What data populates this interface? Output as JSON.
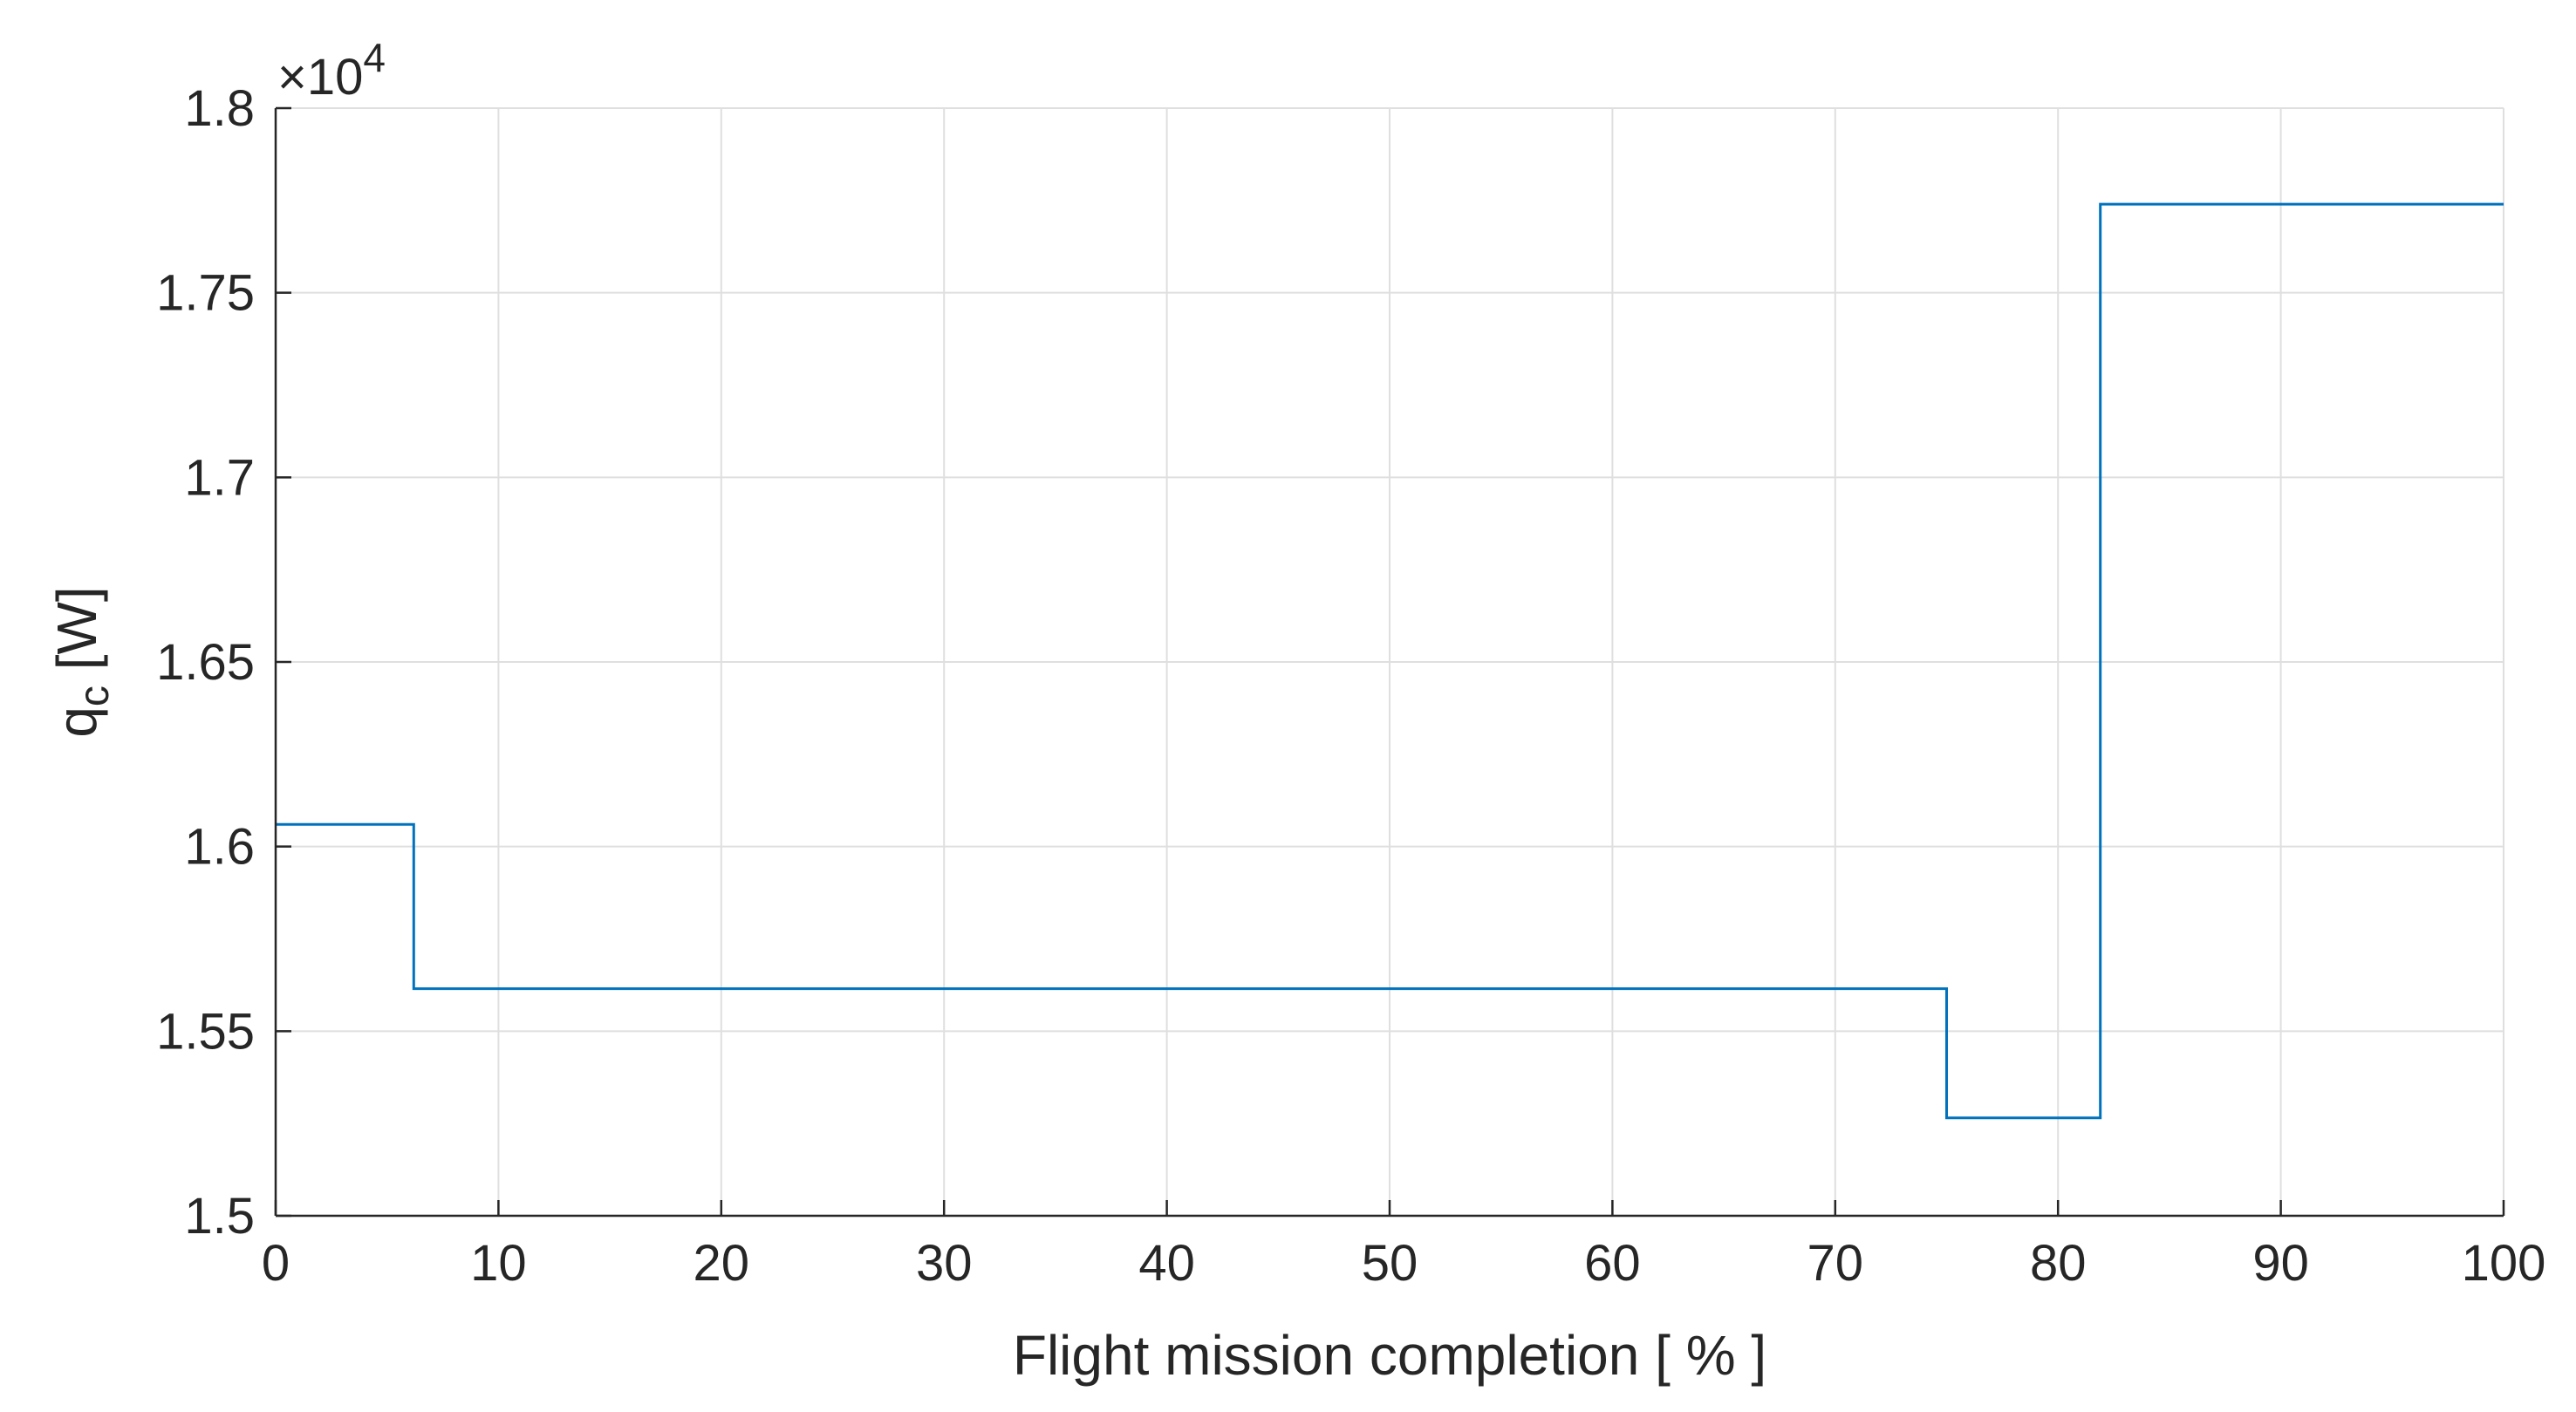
{
  "chart_data": {
    "type": "line",
    "title": "",
    "xlabel": "Flight mission completion [ % ]",
    "ylabel_main": "q",
    "ylabel_sub": "c",
    "ylabel_unit": " [W]",
    "exponent_label": "×10",
    "exponent_power": "4",
    "xlim": [
      0,
      100
    ],
    "ylim": [
      1.5,
      1.8
    ],
    "x_ticks": [
      0,
      10,
      20,
      30,
      40,
      50,
      60,
      70,
      80,
      90,
      100
    ],
    "x_tick_labels": [
      "0",
      "10",
      "20",
      "30",
      "40",
      "50",
      "60",
      "70",
      "80",
      "90",
      "100"
    ],
    "y_ticks": [
      1.5,
      1.55,
      1.6,
      1.65,
      1.7,
      1.75,
      1.8
    ],
    "y_tick_labels": [
      "1.5",
      "1.55",
      "1.6",
      "1.65",
      "1.7",
      "1.75",
      "1.8"
    ],
    "grid": true,
    "series": [
      {
        "color": "#0072bd",
        "x": [
          0,
          6.2,
          6.2,
          75.0,
          75.0,
          81.9,
          81.9,
          100
        ],
        "y": [
          1.606,
          1.606,
          1.5615,
          1.5615,
          1.5265,
          1.5265,
          1.774,
          1.774
        ]
      }
    ]
  }
}
